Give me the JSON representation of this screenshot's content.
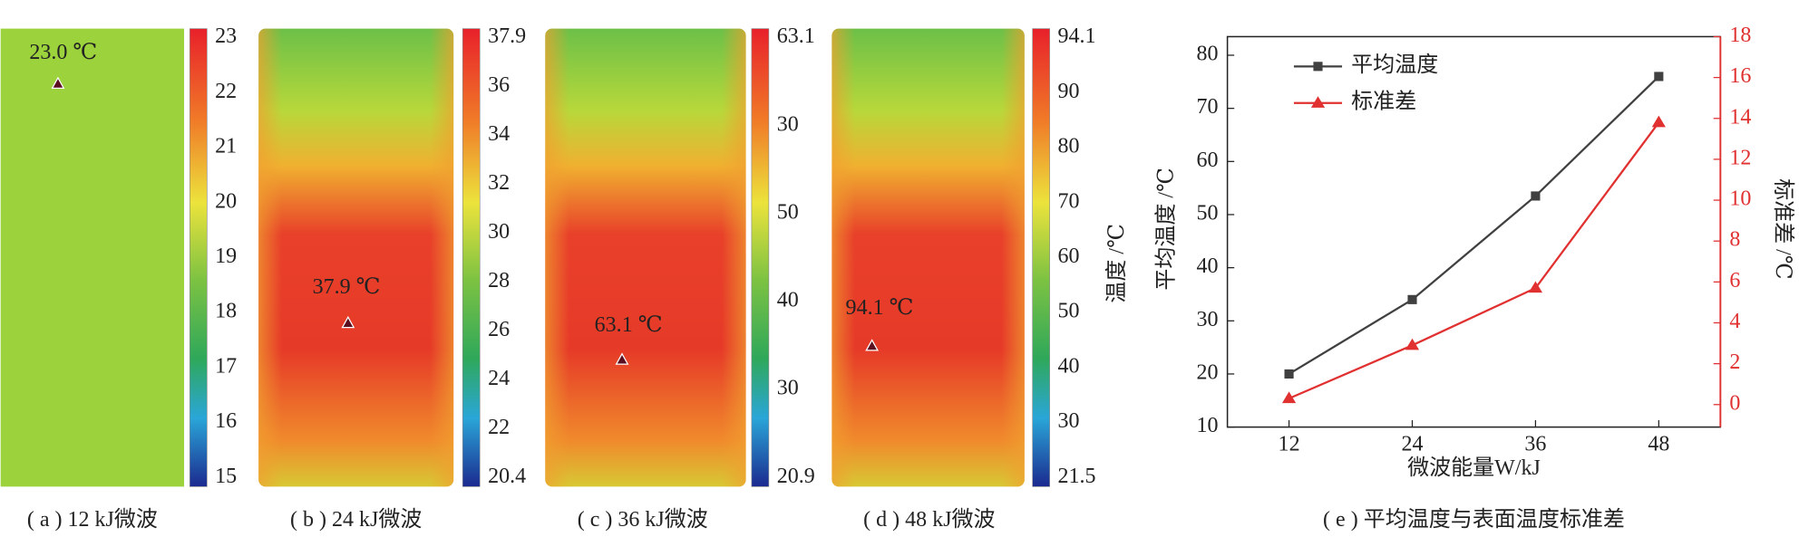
{
  "chart_data": [
    {
      "type": "thermal-image",
      "caption": "( a ) 12 kJ微波",
      "annotation": "23.0 ℃",
      "uniform": true,
      "colorbar_labels": [
        23,
        22,
        21,
        20,
        19,
        18,
        17,
        16,
        15
      ]
    },
    {
      "type": "thermal-image",
      "caption": "( b ) 24 kJ微波",
      "annotation": "37.9 ℃",
      "uniform": false,
      "colorbar_labels": [
        37.9,
        36,
        34,
        32,
        30,
        28,
        26,
        24,
        22,
        20.4
      ]
    },
    {
      "type": "thermal-image",
      "caption": "( c ) 36 kJ微波",
      "annotation": "63.1 ℃",
      "uniform": false,
      "colorbar_labels": [
        63.1,
        30,
        50,
        40,
        30,
        20.9
      ]
    },
    {
      "type": "thermal-image",
      "caption": "( d ) 48 kJ微波",
      "annotation": "94.1 ℃",
      "uniform": false,
      "colorbar_label": "温度 /℃",
      "colorbar_labels": [
        94.1,
        90,
        80,
        70,
        60,
        50,
        40,
        30,
        21.5
      ]
    },
    {
      "type": "line",
      "caption": "( e ) 平均温度与表面温度标准差",
      "x_label": "微波能量W/kJ",
      "y_label": "平均温度 /℃",
      "y2_label": "标准差 /℃",
      "x": [
        12,
        24,
        36,
        48
      ],
      "xlim": [
        6,
        54
      ],
      "xticks": [
        12,
        24,
        36,
        48
      ],
      "ylim": [
        10,
        83.5
      ],
      "yticks": [
        10,
        20,
        30,
        40,
        50,
        60,
        70,
        80
      ],
      "y2lim": [
        -1.1,
        18
      ],
      "y2ticks": [
        0,
        2,
        4,
        6,
        8,
        10,
        12,
        14,
        16,
        18
      ],
      "legend": "upper left",
      "series": [
        {
          "name": "平均温度",
          "color": "#404040",
          "marker": "square",
          "values": [
            20,
            34,
            53.5,
            76
          ]
        },
        {
          "name": "标准差",
          "color": "#e03030",
          "marker": "triangle",
          "axis": "y2",
          "values": [
            0.3,
            2.9,
            5.7,
            13.8
          ]
        }
      ]
    }
  ]
}
